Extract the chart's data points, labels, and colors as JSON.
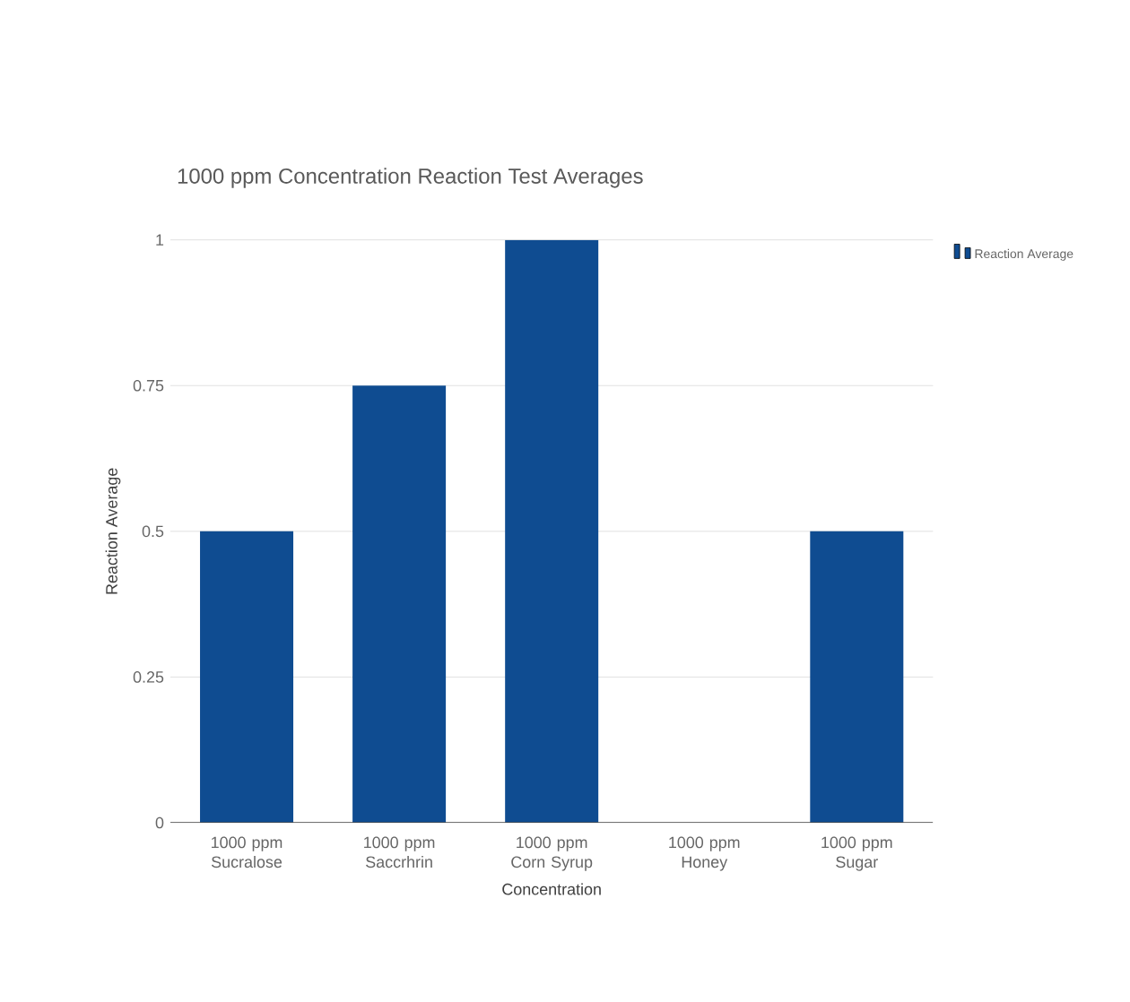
{
  "chart_data": {
    "type": "bar",
    "title": "1000 ppm Concentration Reaction Test Averages",
    "xlabel": "Concentration",
    "ylabel": "Reaction Average",
    "categories": [
      "1000 ppm Sucralose",
      "1000 ppm Saccrhrin",
      "1000 ppm Corn Syrup",
      "1000 ppm Honey",
      "1000 ppm Sugar"
    ],
    "series": [
      {
        "name": "Reaction Average",
        "color": "#0f4c91",
        "values": [
          0.5,
          0.75,
          1,
          0,
          0.5
        ]
      }
    ],
    "ylim": [
      0,
      1
    ],
    "yticks": [
      0,
      0.25,
      0.5,
      0.75,
      1
    ],
    "grid": "y",
    "legend": "top right"
  }
}
